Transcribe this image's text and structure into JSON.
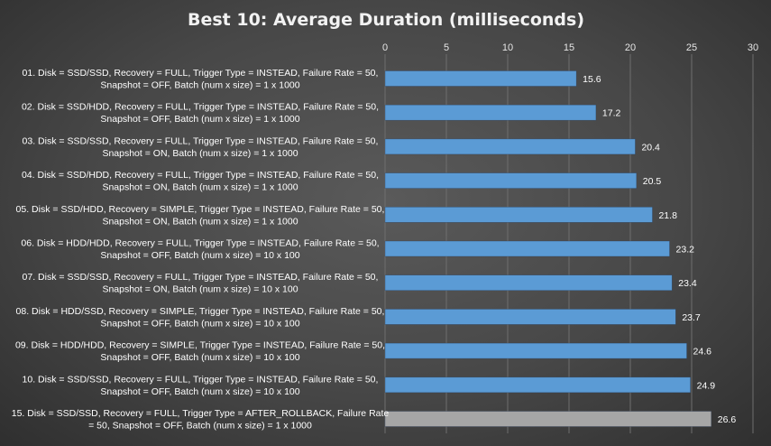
{
  "chart_data": {
    "type": "bar",
    "orientation": "horizontal",
    "title": "Best 10: Average Duration (milliseconds)",
    "xlim": [
      0,
      30
    ],
    "xticks": [
      0,
      5,
      10,
      15,
      20,
      25,
      30
    ],
    "grid": true,
    "axis_position": "top",
    "colors": {
      "bar": "#5b9bd5",
      "highlight_bar": "#a6a6a6",
      "text": "#ffffff"
    },
    "categories": [
      [
        "01. Disk = SSD/SSD, Recovery = FULL, Trigger Type = INSTEAD, Failure Rate = 50,",
        "Snapshot = OFF, Batch (num x size) = 1 x 1000"
      ],
      [
        "02. Disk = SSD/HDD, Recovery = FULL, Trigger Type = INSTEAD, Failure Rate = 50,",
        "Snapshot = OFF, Batch (num x size) = 1 x 1000"
      ],
      [
        "03. Disk = SSD/SSD, Recovery = FULL, Trigger Type = INSTEAD, Failure Rate = 50,",
        "Snapshot = ON, Batch (num x size) = 1 x 1000"
      ],
      [
        "04. Disk = SSD/HDD, Recovery = FULL, Trigger Type = INSTEAD, Failure Rate = 50,",
        "Snapshot = ON, Batch (num x size) = 1 x 1000"
      ],
      [
        "05. Disk = SSD/HDD, Recovery = SIMPLE, Trigger Type = INSTEAD, Failure Rate = 50,",
        "Snapshot = ON, Batch (num x size) = 1 x 1000"
      ],
      [
        "06. Disk = HDD/HDD, Recovery = FULL, Trigger Type = INSTEAD, Failure Rate = 50,",
        "Snapshot = OFF, Batch (num x size) = 10 x 100"
      ],
      [
        "07. Disk = SSD/SSD, Recovery = FULL, Trigger Type = INSTEAD, Failure Rate = 50,",
        "Snapshot = ON, Batch (num x size) = 10 x 100"
      ],
      [
        "08. Disk = HDD/SSD, Recovery = SIMPLE, Trigger Type = INSTEAD, Failure Rate = 50,",
        "Snapshot = OFF, Batch (num x size) = 10 x 100"
      ],
      [
        "09. Disk = HDD/HDD, Recovery = SIMPLE, Trigger Type = INSTEAD, Failure Rate = 50,",
        "Snapshot = OFF, Batch (num x size) = 10 x 100"
      ],
      [
        "10. Disk = SSD/SSD, Recovery = FULL, Trigger Type = INSTEAD, Failure Rate = 50,",
        "Snapshot = OFF, Batch (num x size) = 10 x 100"
      ],
      [
        "15. Disk = SSD/SSD, Recovery = FULL, Trigger Type = AFTER_ROLLBACK, Failure Rate",
        "= 50, Snapshot = OFF, Batch (num x size) = 1 x 1000"
      ]
    ],
    "values": [
      15.6,
      17.2,
      20.4,
      20.5,
      21.8,
      23.2,
      23.4,
      23.7,
      24.6,
      24.9,
      26.6
    ],
    "highlight_index": 10
  }
}
